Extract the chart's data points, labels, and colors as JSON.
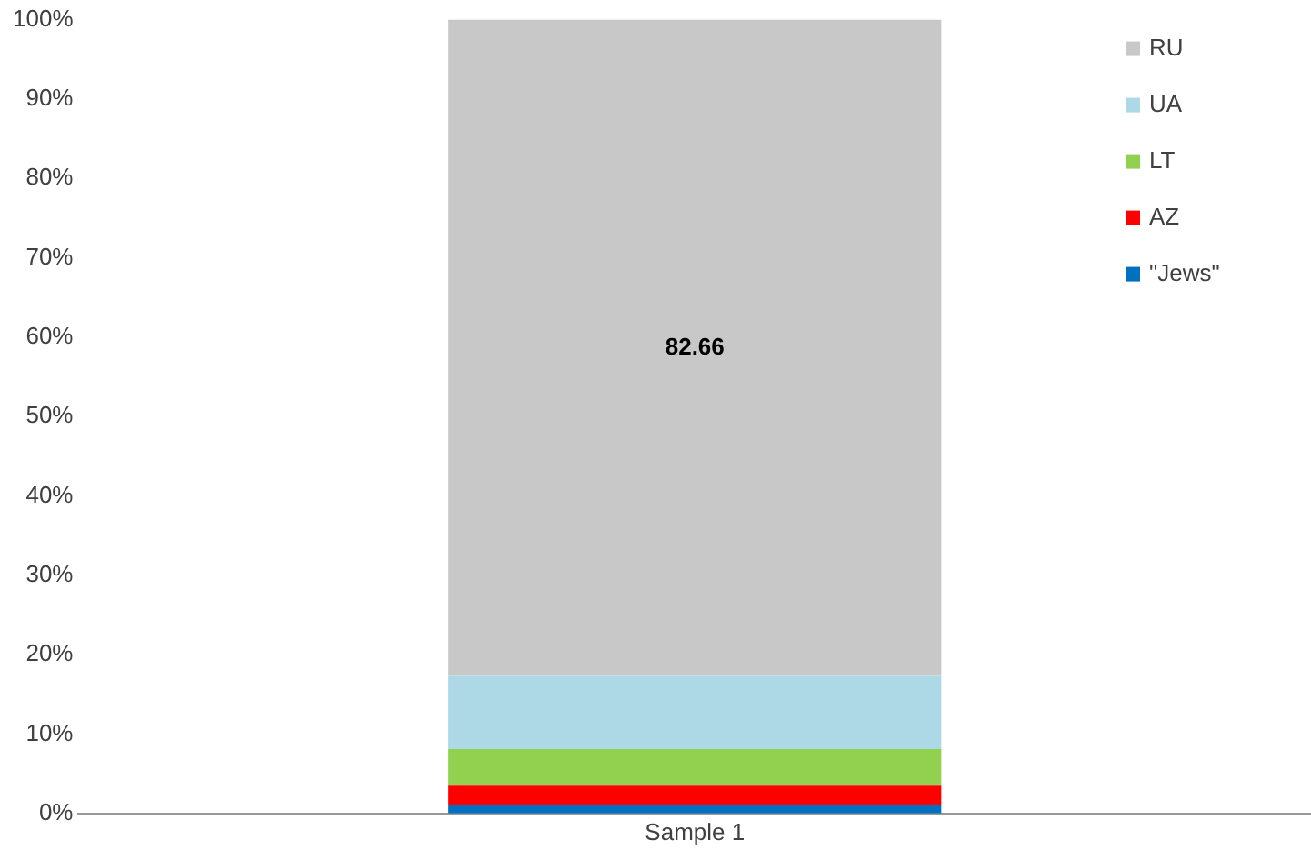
{
  "chart_data": {
    "type": "bar",
    "stacked": true,
    "categories": [
      "Sample 1"
    ],
    "series": [
      {
        "name": "\"Jews\"",
        "color": "#0070c0",
        "values": [
          1.1
        ]
      },
      {
        "name": "AZ",
        "color": "#ff0000",
        "values": [
          2.4
        ]
      },
      {
        "name": "LT",
        "color": "#92d050",
        "values": [
          4.6
        ]
      },
      {
        "name": "UA",
        "color": "#add8e6",
        "values": [
          9.24
        ]
      },
      {
        "name": "RU",
        "color": "#c8c8c8",
        "values": [
          82.66
        ],
        "value_labels": [
          "82.66"
        ]
      }
    ],
    "ylim": [
      0,
      100
    ],
    "yticks": [
      {
        "value": 0,
        "label": "0%"
      },
      {
        "value": 10,
        "label": "10%"
      },
      {
        "value": 20,
        "label": "20%"
      },
      {
        "value": 30,
        "label": "30%"
      },
      {
        "value": 40,
        "label": "40%"
      },
      {
        "value": 50,
        "label": "50%"
      },
      {
        "value": 60,
        "label": "60%"
      },
      {
        "value": 70,
        "label": "70%"
      },
      {
        "value": 80,
        "label": "80%"
      },
      {
        "value": 90,
        "label": "90%"
      },
      {
        "value": 100,
        "label": "100%"
      }
    ],
    "grid": false,
    "legend": "top right"
  }
}
